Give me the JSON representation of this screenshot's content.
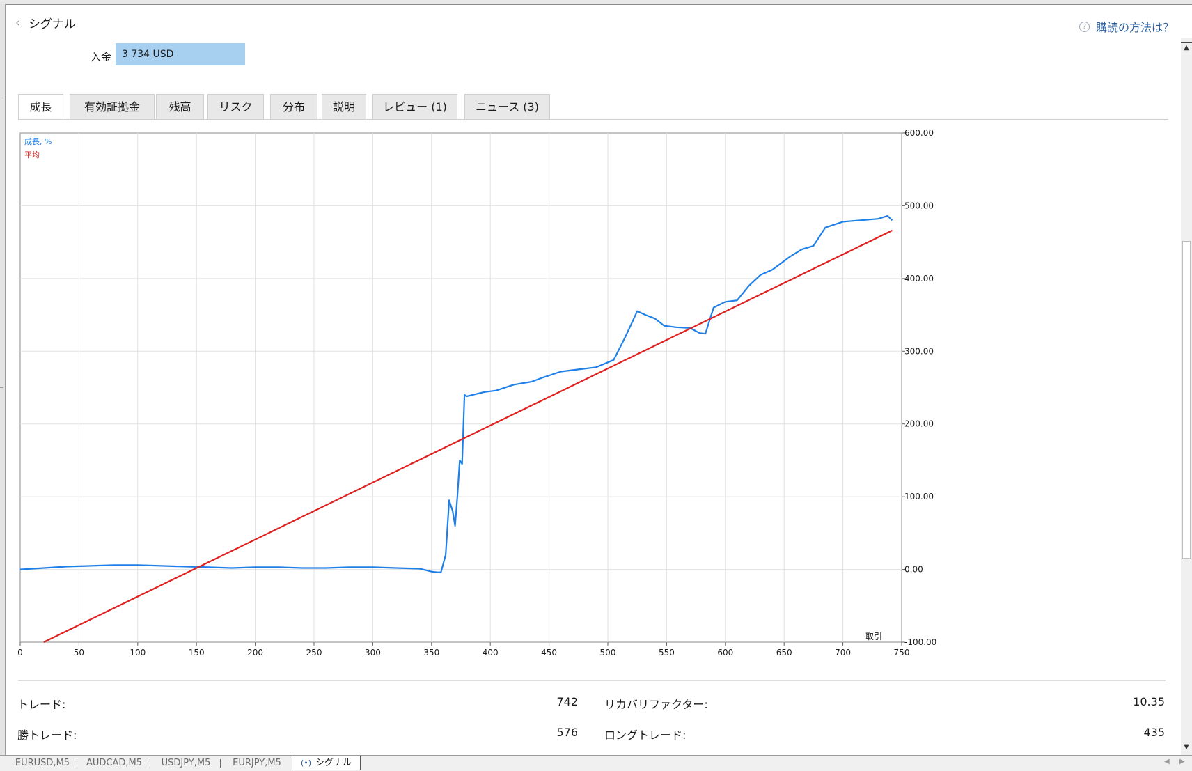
{
  "header": {
    "back_label": "シグナル",
    "howto_label": "購読の方法は？",
    "deposit_label": "入金",
    "deposit_value": "3 734 USD"
  },
  "tabs": [
    "成長",
    "有効証拠金",
    "残高",
    "リスク",
    "分布",
    "説明",
    "レビュー (1)",
    "ニュース (3)"
  ],
  "active_tab": 0,
  "chart_data": {
    "type": "line",
    "xlabel": "取引",
    "xlim": [
      0,
      750
    ],
    "ylim": [
      -100,
      600
    ],
    "x_ticks": [
      "0",
      "50",
      "100",
      "150",
      "200",
      "250",
      "300",
      "350",
      "400",
      "450",
      "500",
      "550",
      "600",
      "650",
      "700",
      "750"
    ],
    "y_ticks": [
      "600.00",
      "500.00",
      "400.00",
      "300.00",
      "200.00",
      "100.00",
      "0.00",
      "-100.00"
    ],
    "grid": true,
    "legend_position": "top-left",
    "series": [
      {
        "name": "成長, %",
        "color": "#1f7fe8",
        "x": [
          0,
          20,
          40,
          60,
          80,
          100,
          120,
          140,
          160,
          180,
          200,
          220,
          240,
          260,
          280,
          300,
          320,
          340,
          350,
          355,
          358,
          362,
          365,
          368,
          370,
          372,
          374,
          376,
          378,
          380,
          385,
          395,
          405,
          420,
          435,
          445,
          460,
          475,
          490,
          505,
          515,
          525,
          532,
          540,
          548,
          558,
          570,
          578,
          583,
          590,
          600,
          610,
          620,
          630,
          640,
          655,
          665,
          675,
          685,
          700,
          715,
          730,
          738,
          742
        ],
        "values": [
          0,
          2,
          4,
          5,
          6,
          6,
          5,
          4,
          3,
          2,
          3,
          3,
          2,
          2,
          3,
          3,
          2,
          1,
          -3,
          -4,
          -4,
          20,
          95,
          80,
          60,
          100,
          150,
          145,
          240,
          238,
          240,
          244,
          246,
          254,
          258,
          264,
          272,
          275,
          278,
          288,
          320,
          355,
          350,
          345,
          335,
          333,
          332,
          325,
          324,
          360,
          368,
          370,
          390,
          405,
          412,
          430,
          440,
          445,
          470,
          478,
          480,
          482,
          486,
          480
        ]
      },
      {
        "name": "平均",
        "color": "#e02020",
        "x": [
          20,
          742
        ],
        "values": [
          -100,
          466
        ]
      }
    ]
  },
  "stats": [
    {
      "label": "トレード:",
      "value": "742"
    },
    {
      "label": "リカバリファクター:",
      "value": "10.35"
    },
    {
      "label": "勝トレード:",
      "value": "576"
    },
    {
      "label": "ロングトレード:",
      "value": "435"
    }
  ],
  "bottom_tabs": [
    "EURUSD,M5",
    "AUDCAD,M5",
    "USDJPY,M5",
    "EURJPY,M5",
    "シグナル"
  ],
  "bottom_active": 4
}
